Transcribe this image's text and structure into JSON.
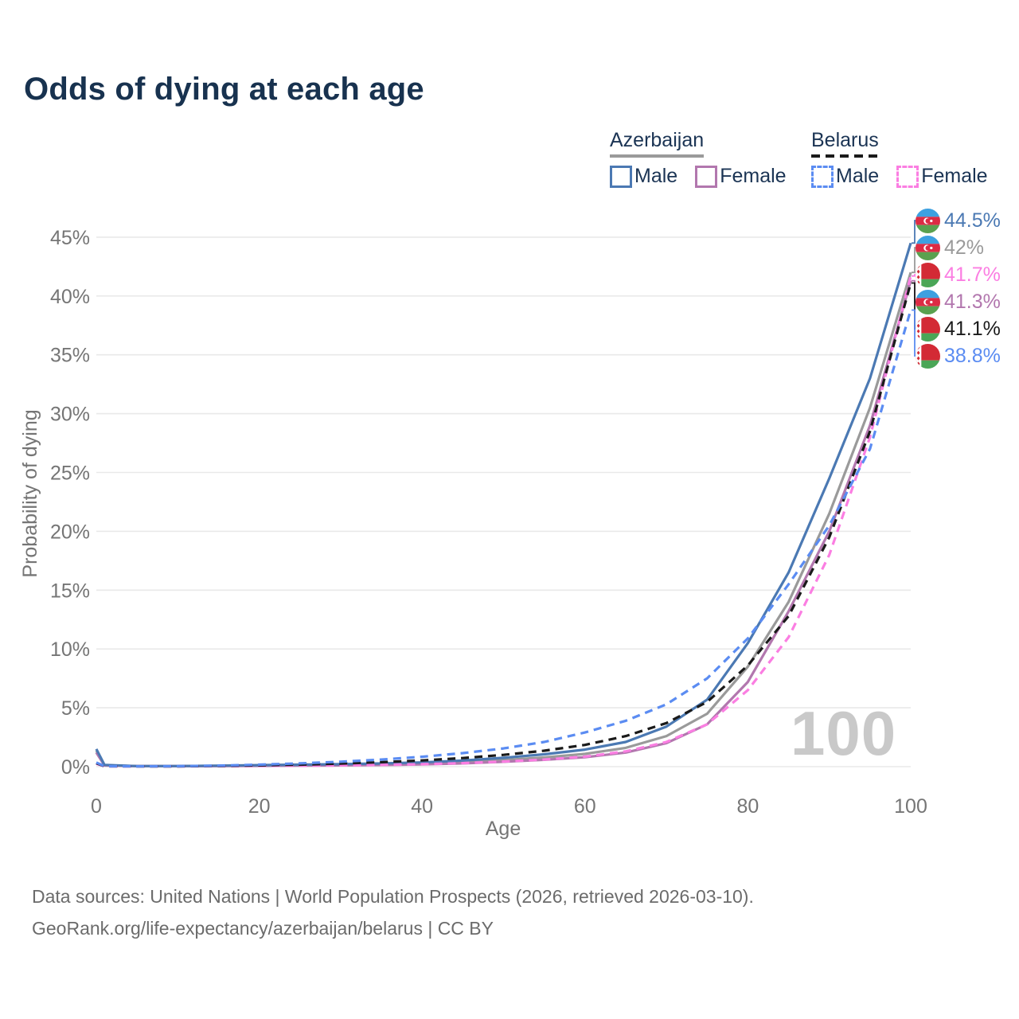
{
  "title": "Odds of dying at each age",
  "watermark": "100",
  "legend": {
    "groups": [
      {
        "id": "azerbaijan",
        "label": "Azerbaijan",
        "underline_style": "solid",
        "underline_color": "#9a9a9a",
        "items": [
          {
            "label": "Male",
            "color": "#4b79b3",
            "dashed": false
          },
          {
            "label": "Female",
            "color": "#b277ae",
            "dashed": false
          }
        ]
      },
      {
        "id": "belarus",
        "label": "Belarus",
        "underline_style": "dashed",
        "underline_color": "#1a1a1a",
        "items": [
          {
            "label": "Male",
            "color": "#5b8cf2",
            "dashed": true
          },
          {
            "label": "Female",
            "color": "#fb7ee2",
            "dashed": true
          }
        ]
      }
    ]
  },
  "footer": {
    "line1": "Data sources: United Nations | World Population Prospects (2026, retrieved 2026-03-10).",
    "line2": "GeoRank.org/life-expectancy/azerbaijan/belarus | CC BY"
  },
  "chart_data": {
    "type": "line",
    "title": "Odds of dying at each age",
    "xlabel": "Age",
    "ylabel": "Probability of dying",
    "xlim": [
      0,
      100
    ],
    "ylim_percent": [
      0,
      47
    ],
    "grid": "horizontal-only",
    "x_ticks": [
      0,
      20,
      40,
      60,
      80,
      100
    ],
    "x_tick_labels": [
      "0",
      "20",
      "40",
      "60",
      "80",
      "100"
    ],
    "y_ticks_percent": [
      0,
      5,
      10,
      15,
      20,
      25,
      30,
      35,
      40,
      45
    ],
    "y_tick_labels": [
      "0%",
      "5%",
      "10%",
      "15%",
      "20%",
      "25%",
      "30%",
      "35%",
      "40%",
      "45%"
    ],
    "ages": [
      0,
      1,
      5,
      10,
      15,
      20,
      25,
      30,
      35,
      40,
      45,
      50,
      55,
      60,
      65,
      70,
      75,
      80,
      85,
      90,
      95,
      100
    ],
    "series": [
      {
        "name": "Azerbaijan",
        "country": "azerbaijan",
        "color": "#9a9a9a",
        "dash": "solid",
        "values_percent": [
          1.35,
          0.12,
          0.045,
          0.045,
          0.07,
          0.1,
          0.13,
          0.16,
          0.2,
          0.27,
          0.39,
          0.56,
          0.78,
          1.08,
          1.6,
          2.6,
          4.5,
          8.5,
          14.0,
          21.5,
          30.5,
          42.0
        ],
        "end_label": "42%"
      },
      {
        "name": "Azerbaijan Female",
        "country": "azerbaijan",
        "color": "#b277ae",
        "dash": "solid",
        "values_percent": [
          1.2,
          0.1,
          0.04,
          0.04,
          0.05,
          0.07,
          0.09,
          0.11,
          0.14,
          0.19,
          0.28,
          0.41,
          0.58,
          0.8,
          1.2,
          2.0,
          3.6,
          7.2,
          13.2,
          20.0,
          29.0,
          41.3
        ],
        "end_label": "41.3%"
      },
      {
        "name": "Azerbaijan Male",
        "country": "azerbaijan",
        "color": "#4b79b3",
        "dash": "solid",
        "values_percent": [
          1.5,
          0.15,
          0.05,
          0.05,
          0.08,
          0.13,
          0.17,
          0.21,
          0.27,
          0.36,
          0.52,
          0.75,
          1.05,
          1.45,
          2.1,
          3.4,
          5.7,
          10.5,
          16.5,
          24.5,
          33.0,
          44.5
        ],
        "end_label": "44.5%"
      },
      {
        "name": "Belarus Female",
        "country": "belarus",
        "color": "#fb7ee2",
        "dash": "dashed",
        "values_percent": [
          0.25,
          0.03,
          0.02,
          0.02,
          0.04,
          0.06,
          0.08,
          0.11,
          0.15,
          0.21,
          0.3,
          0.43,
          0.6,
          0.85,
          1.3,
          2.1,
          3.6,
          6.5,
          11.0,
          18.0,
          28.0,
          41.7
        ],
        "end_label": "41.7%"
      },
      {
        "name": "Belarus",
        "country": "belarus",
        "color": "#1a1a1a",
        "dash": "dashed",
        "values_percent": [
          0.3,
          0.035,
          0.025,
          0.03,
          0.06,
          0.11,
          0.17,
          0.26,
          0.38,
          0.53,
          0.73,
          1.0,
          1.35,
          1.85,
          2.6,
          3.7,
          5.5,
          8.6,
          12.8,
          19.5,
          28.5,
          41.1
        ],
        "end_label": "41.1%"
      },
      {
        "name": "Belarus Male",
        "country": "belarus",
        "color": "#5b8cf2",
        "dash": "dashed",
        "values_percent": [
          0.35,
          0.04,
          0.03,
          0.04,
          0.09,
          0.17,
          0.28,
          0.42,
          0.6,
          0.84,
          1.15,
          1.55,
          2.1,
          2.9,
          3.9,
          5.3,
          7.5,
          10.9,
          15.5,
          20.5,
          27.0,
          38.8
        ],
        "end_label": "38.8%"
      }
    ],
    "end_labels_order": [
      {
        "series": "Azerbaijan Male",
        "flag": "azerbaijan",
        "text": "44.5%",
        "color": "#4b79b3"
      },
      {
        "series": "Azerbaijan",
        "flag": "azerbaijan",
        "text": "42%",
        "color": "#9a9a9a"
      },
      {
        "series": "Belarus Female",
        "flag": "belarus",
        "text": "41.7%",
        "color": "#fb7ee2"
      },
      {
        "series": "Azerbaijan Female",
        "flag": "azerbaijan",
        "text": "41.3%",
        "color": "#b277ae"
      },
      {
        "series": "Belarus",
        "flag": "belarus",
        "text": "41.1%",
        "color": "#1a1a1a"
      },
      {
        "series": "Belarus Male",
        "flag": "belarus",
        "text": "38.8%",
        "color": "#5b8cf2"
      }
    ],
    "legend_position": "top-right",
    "annotations": [
      "100"
    ]
  }
}
